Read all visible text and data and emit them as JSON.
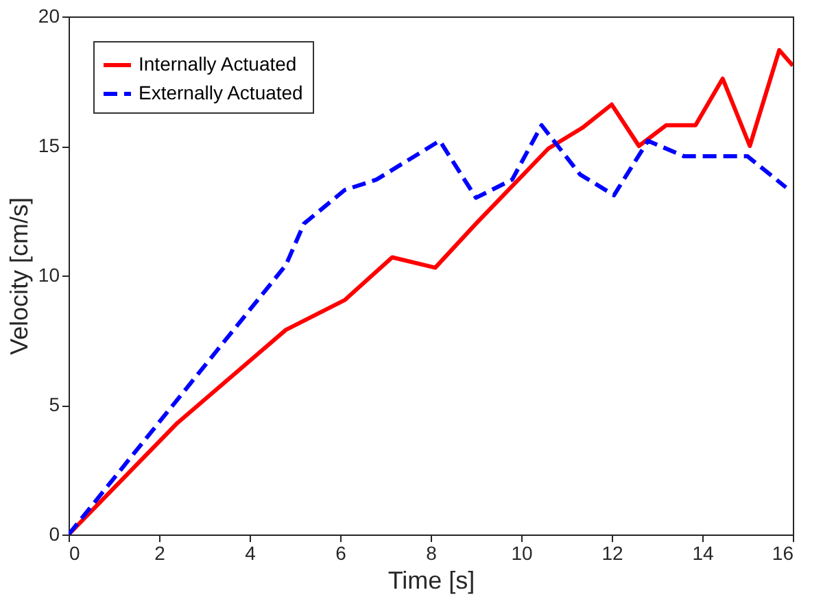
{
  "chart_data": {
    "type": "line",
    "xlabel": "Time [s]",
    "ylabel": "Velocity [cm/s]",
    "xlim": [
      0,
      16
    ],
    "ylim": [
      0,
      20
    ],
    "xticks": [
      0,
      2,
      4,
      6,
      8,
      10,
      12,
      14,
      16
    ],
    "yticks": [
      0,
      5,
      10,
      15,
      20
    ],
    "grid": false,
    "legend": "top left",
    "series": [
      {
        "name": "Internally Actuated",
        "color": "#ff0000",
        "line_style": "solid",
        "x": [
          0,
          2.4,
          4.8,
          6.1,
          7.15,
          8.1,
          9.0,
          10.6,
          11.35,
          12.0,
          12.6,
          13.2,
          13.85,
          14.45,
          15.05,
          15.7,
          16
        ],
        "values": [
          0,
          4.3,
          7.9,
          9.05,
          10.7,
          10.3,
          12.0,
          14.9,
          15.7,
          16.6,
          15.0,
          15.8,
          15.8,
          17.6,
          15.0,
          18.7,
          18.1
        ]
      },
      {
        "name": "Externally Actuated",
        "color": "#0000ff",
        "line_style": "dashed",
        "x": [
          0,
          4.8,
          5.2,
          6.1,
          6.8,
          8.2,
          9.0,
          9.8,
          10.45,
          11.3,
          12.05,
          12.8,
          13.6,
          15.0,
          15.85
        ],
        "values": [
          0,
          10.4,
          12.0,
          13.3,
          13.7,
          15.2,
          13.0,
          13.7,
          15.8,
          13.9,
          13.1,
          15.2,
          14.6,
          14.6,
          13.4
        ]
      }
    ]
  }
}
